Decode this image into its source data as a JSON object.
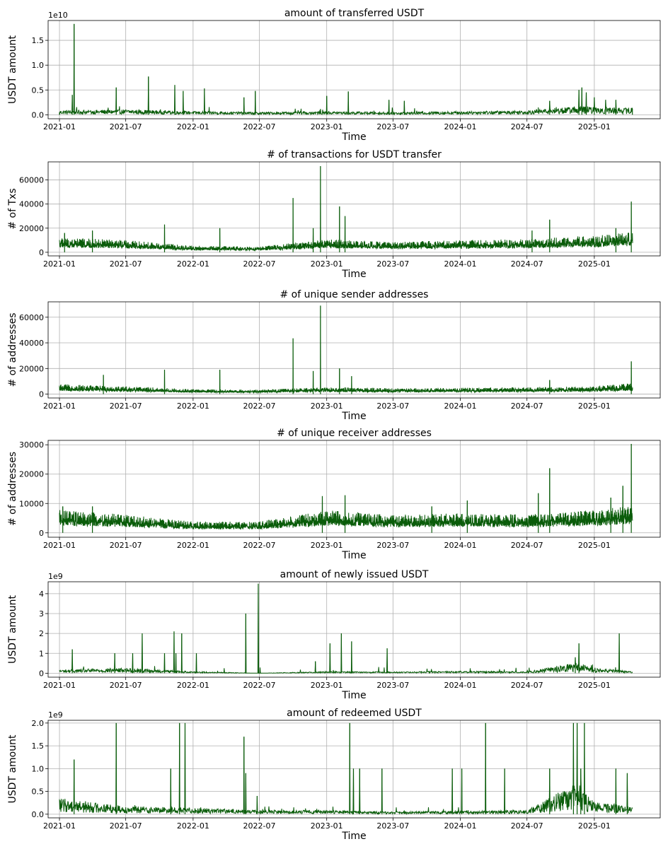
{
  "colors": {
    "series": "#0a5c0a",
    "grid": "#b0b0b0"
  },
  "chart_data": [
    {
      "type": "line",
      "title": "amount of transferred USDT",
      "xlabel": "Time",
      "ylabel": "USDT amount",
      "offset_label": "1e10",
      "grid": true,
      "legend": "none",
      "x_range": [
        "2020-12-01",
        "2025-06-30"
      ],
      "x_ticks": [
        "2021-01",
        "2021-07",
        "2022-01",
        "2022-07",
        "2023-01",
        "2023-07",
        "2024-01",
        "2024-07",
        "2025-01"
      ],
      "ylim": [
        -0.08,
        1.9
      ],
      "y_ticks": [
        0.0,
        0.5,
        1.0,
        1.5
      ],
      "y_tick_labels": [
        "0.0",
        "0.5",
        "1.0",
        "1.5"
      ],
      "series": [
        {
          "x": [
            "2021-01-01",
            "2021-02-05",
            "2021-02-10",
            "2021-06-05",
            "2021-09-01",
            "2021-11-12",
            "2021-12-05",
            "2022-02-01",
            "2022-05-20",
            "2022-06-20",
            "2023-01-01",
            "2023-03-01",
            "2023-06-20",
            "2023-08-01",
            "2024-09-01",
            "2024-11-20",
            "2024-11-28",
            "2024-12-10",
            "2025-01-01",
            "2025-02-01",
            "2025-03-01",
            "2025-04-15"
          ],
          "y": [
            0.05,
            0.4,
            1.83,
            0.55,
            0.77,
            0.6,
            0.48,
            0.53,
            0.35,
            0.48,
            0.38,
            0.47,
            0.3,
            0.28,
            0.28,
            0.5,
            0.55,
            0.45,
            0.35,
            0.3,
            0.3,
            0.12
          ],
          "base": [
            {
              "x": "2021-01-01",
              "y": 0.05
            },
            {
              "x": "2021-07-01",
              "y": 0.06
            },
            {
              "x": "2022-01-01",
              "y": 0.04
            },
            {
              "x": "2022-07-01",
              "y": 0.03
            },
            {
              "x": "2023-01-01",
              "y": 0.04
            },
            {
              "x": "2023-07-01",
              "y": 0.03
            },
            {
              "x": "2024-01-01",
              "y": 0.04
            },
            {
              "x": "2024-07-01",
              "y": 0.05
            },
            {
              "x": "2024-11-15",
              "y": 0.1
            },
            {
              "x": "2025-01-01",
              "y": 0.09
            },
            {
              "x": "2025-04-15",
              "y": 0.08
            }
          ]
        }
      ]
    },
    {
      "type": "line",
      "title": "# of transactions for USDT transfer",
      "xlabel": "Time",
      "ylabel": "# of Txs",
      "grid": true,
      "legend": "none",
      "x_range": [
        "2020-12-01",
        "2025-06-30"
      ],
      "x_ticks": [
        "2021-01",
        "2021-07",
        "2022-01",
        "2022-07",
        "2023-01",
        "2023-07",
        "2024-01",
        "2024-07",
        "2025-01"
      ],
      "ylim": [
        -3000,
        75000
      ],
      "y_ticks": [
        0,
        20000,
        40000,
        60000
      ],
      "y_tick_labels": [
        "0",
        "20000",
        "40000",
        "60000"
      ],
      "series": [
        {
          "x": [
            "2021-01-15",
            "2021-04-01",
            "2021-10-15",
            "2022-03-15",
            "2022-10-01",
            "2022-11-25",
            "2022-12-15",
            "2023-02-05",
            "2023-02-20",
            "2024-07-15",
            "2024-09-01",
            "2025-03-01",
            "2025-04-12"
          ],
          "y": [
            16000,
            18000,
            23000,
            20000,
            45000,
            20000,
            71500,
            38000,
            30000,
            18000,
            27000,
            20000,
            42000
          ],
          "base": [
            {
              "x": "2021-01-01",
              "y": 8000
            },
            {
              "x": "2021-07-01",
              "y": 6500
            },
            {
              "x": "2022-01-01",
              "y": 3500
            },
            {
              "x": "2022-07-01",
              "y": 3000
            },
            {
              "x": "2023-01-01",
              "y": 7000
            },
            {
              "x": "2023-07-01",
              "y": 5500
            },
            {
              "x": "2024-01-01",
              "y": 6500
            },
            {
              "x": "2024-07-01",
              "y": 7000
            },
            {
              "x": "2025-01-01",
              "y": 9000
            },
            {
              "x": "2025-04-15",
              "y": 11000
            }
          ]
        }
      ]
    },
    {
      "type": "line",
      "title": "# of unique sender addresses",
      "xlabel": "Time",
      "ylabel": "# of addresses",
      "grid": true,
      "legend": "none",
      "x_range": [
        "2020-12-01",
        "2025-06-30"
      ],
      "x_ticks": [
        "2021-01",
        "2021-07",
        "2022-01",
        "2022-07",
        "2023-01",
        "2023-07",
        "2024-01",
        "2024-07",
        "2025-01"
      ],
      "ylim": [
        -3000,
        72000
      ],
      "y_ticks": [
        0,
        20000,
        40000,
        60000
      ],
      "y_tick_labels": [
        "0",
        "20000",
        "40000",
        "60000"
      ],
      "series": [
        {
          "x": [
            "2021-05-01",
            "2021-10-15",
            "2022-03-15",
            "2022-10-01",
            "2022-11-25",
            "2022-12-15",
            "2023-02-05",
            "2023-03-10",
            "2024-09-01",
            "2025-04-12"
          ],
          "y": [
            15000,
            19000,
            19000,
            43500,
            18000,
            69000,
            20000,
            14000,
            11000,
            25500
          ],
          "base": [
            {
              "x": "2021-01-01",
              "y": 5000
            },
            {
              "x": "2021-07-01",
              "y": 4000
            },
            {
              "x": "2022-01-01",
              "y": 2500
            },
            {
              "x": "2022-07-01",
              "y": 2200
            },
            {
              "x": "2023-01-01",
              "y": 3500
            },
            {
              "x": "2023-07-01",
              "y": 3000
            },
            {
              "x": "2024-01-01",
              "y": 3200
            },
            {
              "x": "2024-07-01",
              "y": 3500
            },
            {
              "x": "2025-01-01",
              "y": 4000
            },
            {
              "x": "2025-04-15",
              "y": 5500
            }
          ]
        }
      ]
    },
    {
      "type": "line",
      "title": "# of unique receiver addresses",
      "xlabel": "Time",
      "ylabel": "# of addresses",
      "grid": true,
      "legend": "none",
      "x_range": [
        "2020-12-01",
        "2025-06-30"
      ],
      "x_ticks": [
        "2021-01",
        "2021-07",
        "2022-01",
        "2022-07",
        "2023-01",
        "2023-07",
        "2024-01",
        "2024-07",
        "2025-01"
      ],
      "ylim": [
        -1500,
        31500
      ],
      "y_ticks": [
        0,
        10000,
        20000,
        30000
      ],
      "y_tick_labels": [
        "0",
        "10000",
        "20000",
        "30000"
      ],
      "series": [
        {
          "x": [
            "2021-01-10",
            "2021-04-01",
            "2022-12-20",
            "2023-02-20",
            "2023-10-15",
            "2024-01-20",
            "2024-08-01",
            "2024-09-01",
            "2025-02-15",
            "2025-03-20",
            "2025-04-12"
          ],
          "y": [
            9000,
            9000,
            12500,
            12800,
            9000,
            11000,
            13500,
            22000,
            12000,
            16000,
            30300
          ],
          "base": [
            {
              "x": "2021-01-01",
              "y": 5000
            },
            {
              "x": "2021-07-01",
              "y": 4000
            },
            {
              "x": "2022-01-01",
              "y": 2500
            },
            {
              "x": "2022-07-01",
              "y": 2500
            },
            {
              "x": "2023-01-01",
              "y": 5000
            },
            {
              "x": "2023-07-01",
              "y": 4000
            },
            {
              "x": "2024-01-01",
              "y": 4300
            },
            {
              "x": "2024-07-01",
              "y": 4000
            },
            {
              "x": "2025-01-01",
              "y": 5000
            },
            {
              "x": "2025-04-15",
              "y": 6000
            }
          ]
        }
      ]
    },
    {
      "type": "line",
      "title": "amount of newly issued USDT",
      "xlabel": "Time",
      "ylabel": "USDT amount",
      "offset_label": "1e9",
      "grid": true,
      "legend": "none",
      "x_range": [
        "2020-12-01",
        "2025-06-30"
      ],
      "x_ticks": [
        "2021-01",
        "2021-07",
        "2022-01",
        "2022-07",
        "2023-01",
        "2023-07",
        "2024-01",
        "2024-07",
        "2025-01"
      ],
      "ylim": [
        -0.2,
        4.6
      ],
      "y_ticks": [
        0,
        1,
        2,
        3,
        4
      ],
      "y_tick_labels": [
        "0",
        "1",
        "2",
        "3",
        "4"
      ],
      "series": [
        {
          "x": [
            "2021-02-05",
            "2021-06-01",
            "2021-07-20",
            "2021-08-15",
            "2021-10-15",
            "2021-11-10",
            "2021-11-15",
            "2021-12-01",
            "2022-01-10",
            "2022-05-25",
            "2022-06-28",
            "2022-12-01",
            "2023-01-10",
            "2023-02-10",
            "2023-03-10",
            "2023-06-15",
            "2024-11-10",
            "2024-11-20",
            "2025-03-10"
          ],
          "y": [
            1.2,
            1.0,
            1.0,
            2.0,
            1.0,
            2.1,
            1.0,
            2.0,
            1.0,
            3.0,
            4.5,
            0.6,
            1.5,
            2.0,
            1.6,
            1.25,
            0.8,
            1.5,
            2.0
          ],
          "base": [
            {
              "x": "2021-01-01",
              "y": 0.1
            },
            {
              "x": "2021-07-01",
              "y": 0.15
            },
            {
              "x": "2022-01-01",
              "y": 0.05
            },
            {
              "x": "2022-07-01",
              "y": 0.0
            },
            {
              "x": "2023-01-01",
              "y": 0.05
            },
            {
              "x": "2023-07-01",
              "y": 0.04
            },
            {
              "x": "2024-01-01",
              "y": 0.06
            },
            {
              "x": "2024-07-01",
              "y": 0.05
            },
            {
              "x": "2024-11-15",
              "y": 0.3
            },
            {
              "x": "2025-01-01",
              "y": 0.15
            },
            {
              "x": "2025-04-15",
              "y": 0.05
            }
          ]
        }
      ]
    },
    {
      "type": "line",
      "title": "amount of redeemed USDT",
      "xlabel": "Time",
      "ylabel": "USDT amount",
      "offset_label": "1e9",
      "grid": true,
      "legend": "none",
      "x_range": [
        "2020-12-01",
        "2025-06-30"
      ],
      "x_ticks": [
        "2021-01",
        "2021-07",
        "2022-01",
        "2022-07",
        "2023-01",
        "2023-07",
        "2024-01",
        "2024-07",
        "2025-01"
      ],
      "ylim": [
        -0.08,
        2.06
      ],
      "y_ticks": [
        0.0,
        0.5,
        1.0,
        1.5,
        2.0
      ],
      "y_tick_labels": [
        "0.0",
        "0.5",
        "1.0",
        "1.5",
        "2.0"
      ],
      "series": [
        {
          "x": [
            "2021-02-10",
            "2021-06-05",
            "2021-11-01",
            "2021-11-25",
            "2021-12-10",
            "2022-05-20",
            "2022-05-25",
            "2022-06-25",
            "2023-03-05",
            "2023-03-15",
            "2023-04-01",
            "2023-06-01",
            "2023-12-10",
            "2024-01-05",
            "2024-03-10",
            "2024-05-01",
            "2024-09-01",
            "2024-11-05",
            "2024-11-15",
            "2024-11-25",
            "2024-12-05",
            "2025-03-01",
            "2025-04-01"
          ],
          "y": [
            1.2,
            2.0,
            1.0,
            2.0,
            2.0,
            1.7,
            0.9,
            0.4,
            2.0,
            1.0,
            1.0,
            1.0,
            1.0,
            1.0,
            2.0,
            1.0,
            1.0,
            2.0,
            2.0,
            1.0,
            2.0,
            1.0,
            0.9
          ],
          "base": [
            {
              "x": "2021-01-01",
              "y": 0.2
            },
            {
              "x": "2021-07-01",
              "y": 0.1
            },
            {
              "x": "2022-01-01",
              "y": 0.08
            },
            {
              "x": "2022-07-01",
              "y": 0.05
            },
            {
              "x": "2023-01-01",
              "y": 0.05
            },
            {
              "x": "2023-07-01",
              "y": 0.03
            },
            {
              "x": "2024-01-01",
              "y": 0.04
            },
            {
              "x": "2024-07-01",
              "y": 0.05
            },
            {
              "x": "2024-11-15",
              "y": 0.4
            },
            {
              "x": "2025-01-01",
              "y": 0.15
            },
            {
              "x": "2025-04-15",
              "y": 0.1
            }
          ]
        }
      ]
    }
  ]
}
